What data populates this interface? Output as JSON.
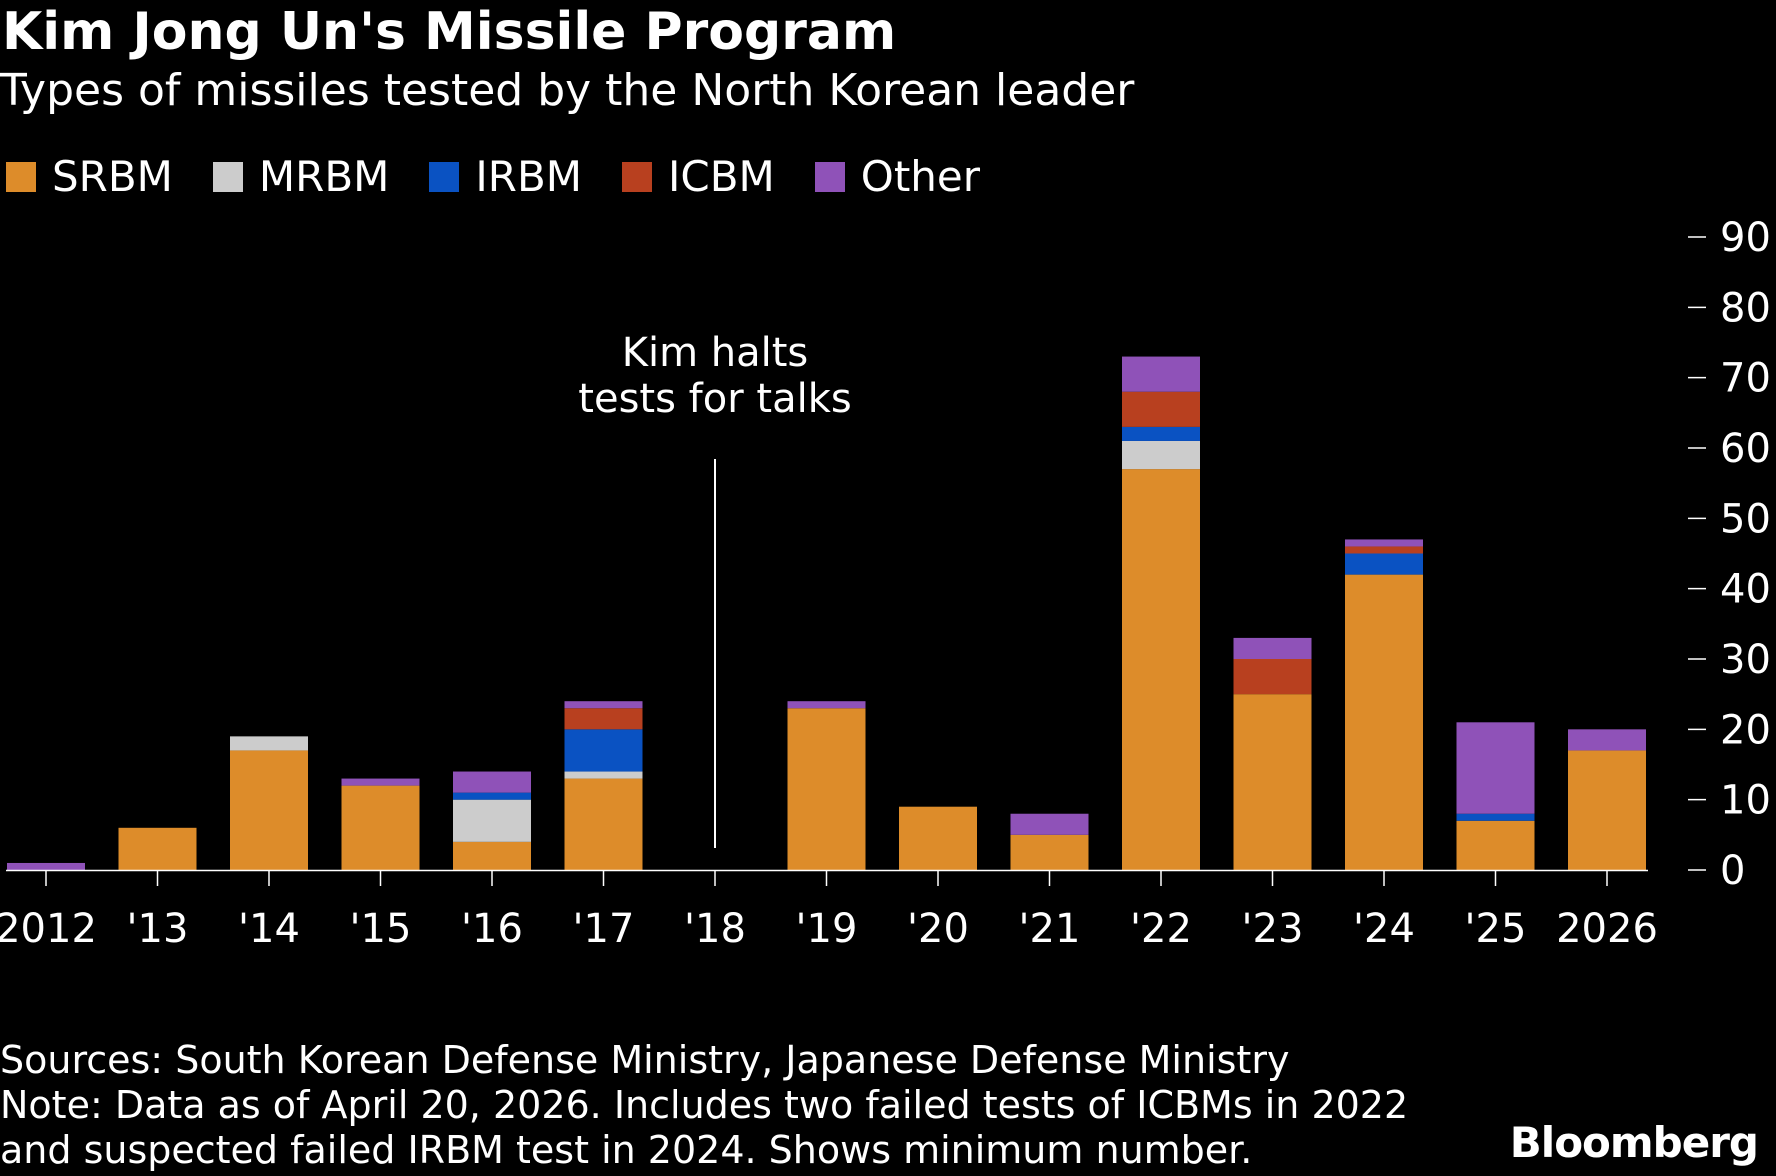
{
  "header": {
    "title": "Kim Jong Un's Missile Program",
    "subtitle": "Types of missiles tested by the North Korean leader"
  },
  "legend": [
    {
      "label": "SRBM",
      "color": "#dd8c2a"
    },
    {
      "label": "MRBM",
      "color": "#cccccc"
    },
    {
      "label": "IRBM",
      "color": "#0a52c2"
    },
    {
      "label": "ICBM",
      "color": "#b8401f"
    },
    {
      "label": "Other",
      "color": "#8f52b8"
    }
  ],
  "chart_data": {
    "type": "bar",
    "stacked": true,
    "categories": [
      "2012",
      "'13",
      "'14",
      "'15",
      "'16",
      "'17",
      "'18",
      "'19",
      "'20",
      "'21",
      "'22",
      "'23",
      "'24",
      "'25",
      "2026"
    ],
    "series": [
      {
        "name": "SRBM",
        "color": "#dd8c2a",
        "values": [
          0,
          6,
          17,
          12,
          4,
          13,
          0,
          23,
          9,
          5,
          57,
          25,
          42,
          7,
          17
        ]
      },
      {
        "name": "MRBM",
        "color": "#cccccc",
        "values": [
          0,
          0,
          2,
          0,
          6,
          1,
          0,
          0,
          0,
          0,
          4,
          0,
          0,
          0,
          0
        ]
      },
      {
        "name": "IRBM",
        "color": "#0a52c2",
        "values": [
          0,
          0,
          0,
          0,
          1,
          6,
          0,
          0,
          0,
          0,
          2,
          0,
          3,
          1,
          0
        ]
      },
      {
        "name": "ICBM",
        "color": "#b8401f",
        "values": [
          0,
          0,
          0,
          0,
          0,
          3,
          0,
          0,
          0,
          0,
          5,
          5,
          1,
          0,
          0
        ]
      },
      {
        "name": "Other",
        "color": "#8f52b8",
        "values": [
          1,
          0,
          0,
          1,
          3,
          1,
          0,
          1,
          0,
          3,
          5,
          3,
          1,
          13,
          3
        ]
      }
    ],
    "ylim": [
      0,
      90
    ],
    "yticks": [
      0,
      10,
      20,
      30,
      40,
      50,
      60,
      70,
      80,
      90
    ],
    "y_axis_side": "right",
    "grid": false,
    "legend_position": "top-left",
    "annotation": {
      "category": "'18",
      "lines": [
        "Kim halts",
        "tests for talks"
      ]
    }
  },
  "footer": {
    "sources": "Sources: South Korean Defense Ministry, Japanese Defense Ministry",
    "note_line1": "Note: Data as of April 20, 2026. Includes two failed tests of ICBMs in 2022",
    "note_line2": "and suspected failed IRBM test in 2024. Shows minimum number.",
    "brand": "Bloomberg"
  }
}
